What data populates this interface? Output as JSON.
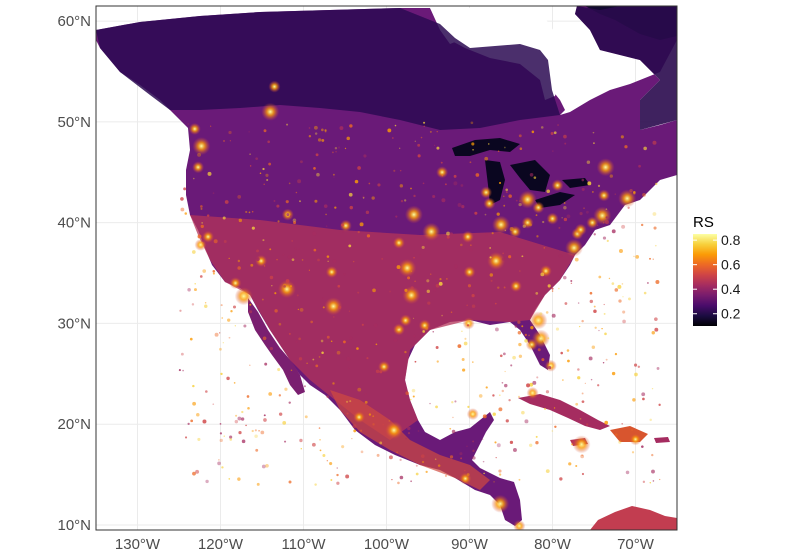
{
  "map": {
    "type": "raster-map",
    "lon_range": [
      -135,
      -65
    ],
    "lat_range": [
      9.5,
      61.5
    ],
    "lat_ticks": [
      {
        "value": 60,
        "label": "60°N"
      },
      {
        "value": 50,
        "label": "50°N"
      },
      {
        "value": 40,
        "label": "40°N"
      },
      {
        "value": 30,
        "label": "30°N"
      },
      {
        "value": 20,
        "label": "20°N"
      },
      {
        "value": 10,
        "label": "10°N"
      }
    ],
    "lon_ticks": [
      {
        "value": -130,
        "label": "130°W"
      },
      {
        "value": -120,
        "label": "120°W"
      },
      {
        "value": -110,
        "label": "110°W"
      },
      {
        "value": -100,
        "label": "100°W"
      },
      {
        "value": -90,
        "label": "90°W"
      },
      {
        "value": -80,
        "label": "80°W"
      },
      {
        "value": -70,
        "label": "70°W"
      }
    ],
    "grid": true,
    "background_color": "#ffffff",
    "grid_color": "#ebebeb",
    "legend": {
      "title": "RS",
      "position": "right",
      "range": [
        0.1,
        0.85
      ],
      "ticks": [
        {
          "value": 0.8,
          "label": "0.8"
        },
        {
          "value": 0.6,
          "label": "0.6"
        },
        {
          "value": 0.4,
          "label": "0.4"
        },
        {
          "value": 0.2,
          "label": "0.2"
        }
      ],
      "colorscale": "inferno",
      "colors": [
        "#000004",
        "#1b0c41",
        "#4a0c6b",
        "#781c6d",
        "#a52c60",
        "#cf4446",
        "#ed6925",
        "#fb9b06",
        "#f7d13d",
        "#fcffa4"
      ]
    },
    "land_color_base": "#5a1878",
    "hotspots_color": "#fbb61a"
  }
}
